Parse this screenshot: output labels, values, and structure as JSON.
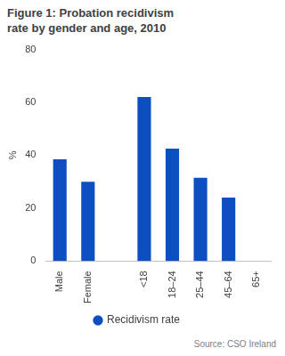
{
  "chart_data": {
    "type": "bar",
    "title": "Figure 1: Probation recidivism rate by gender and age, 2010",
    "source": "Source: CSO Ireland",
    "y_label": "%",
    "categories": [
      "Male",
      "Female",
      null,
      "<18",
      "18–24",
      "25–44",
      "45–64",
      "65+"
    ],
    "series": [
      {
        "name": "Recidivism rate",
        "color": "#0d4fc1",
        "values": [
          38.5,
          30,
          null,
          62,
          42.5,
          31.5,
          24,
          null
        ]
      }
    ],
    "ylim": [
      0,
      80
    ],
    "yticks": [
      0,
      20,
      40,
      60,
      80
    ],
    "grid": false,
    "legend": "bottom"
  }
}
